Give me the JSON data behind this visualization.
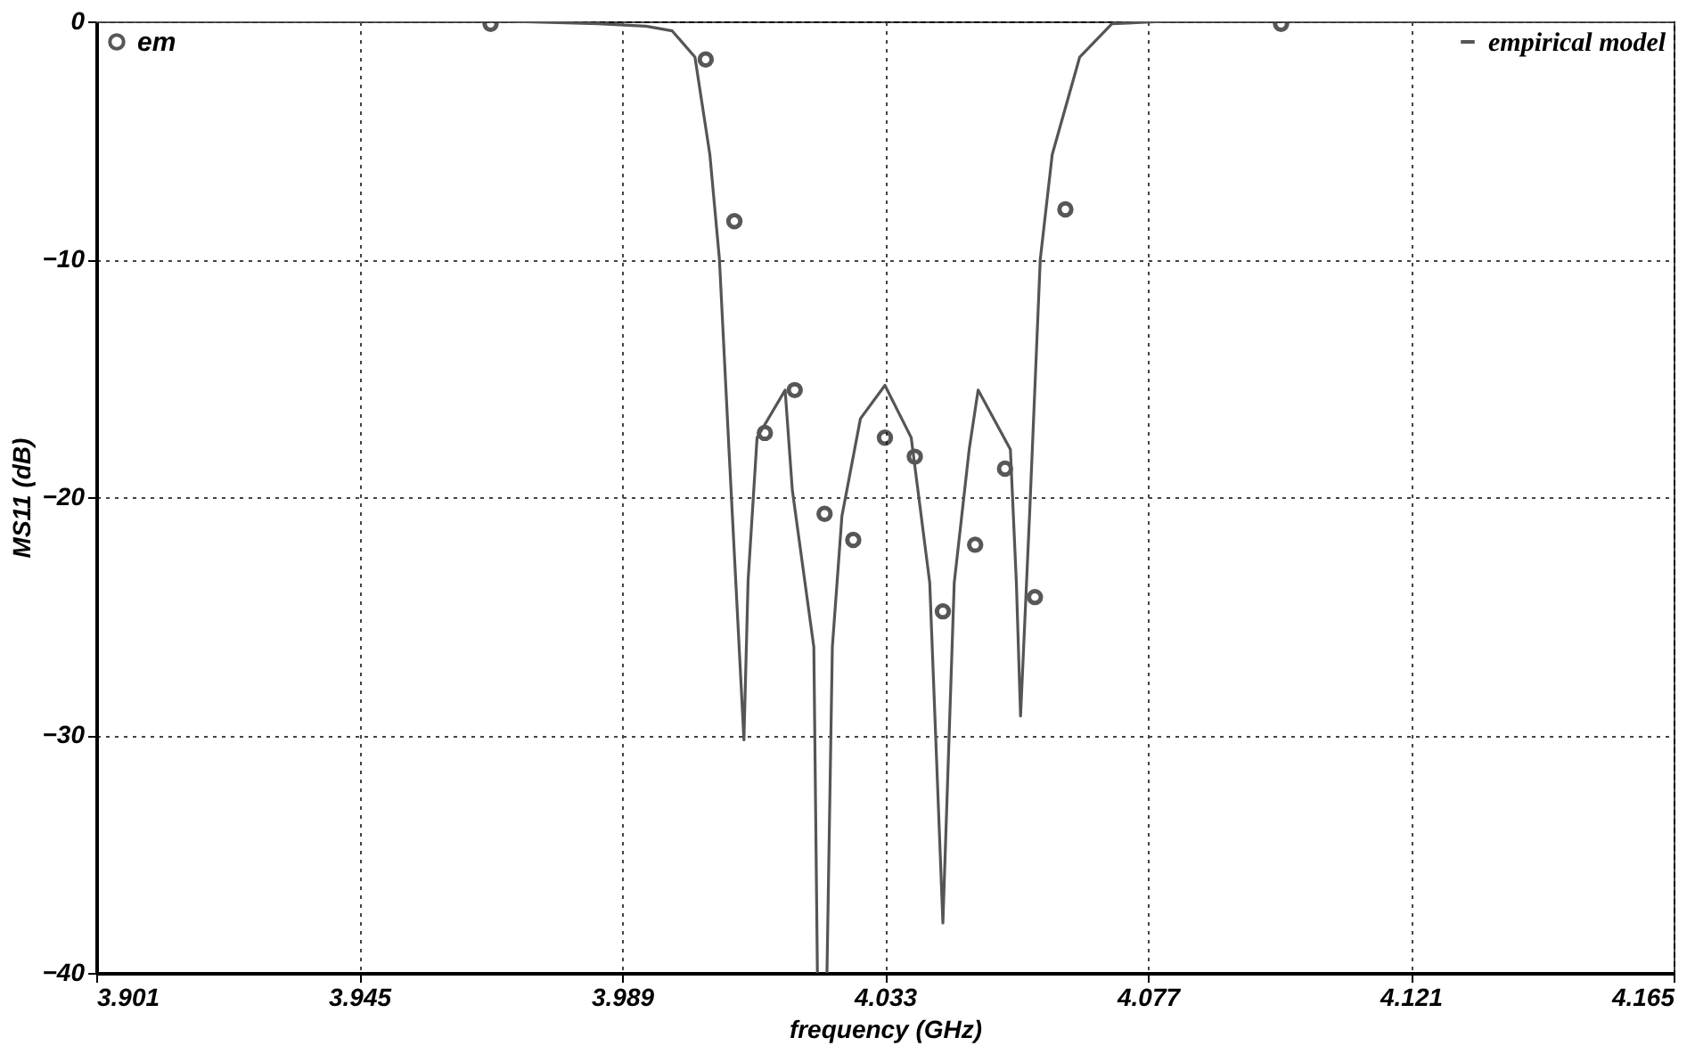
{
  "chart_data": {
    "type": "line",
    "xlabel": "frequency (GHz)",
    "ylabel": "MS11 (dB)",
    "xlim": [
      3.901,
      4.165
    ],
    "ylim": [
      -40,
      0
    ],
    "xticks": [
      3.901,
      3.945,
      3.989,
      4.033,
      4.077,
      4.121,
      4.165
    ],
    "yticks": [
      0,
      -10,
      -20,
      -30,
      -40
    ],
    "grid": true,
    "legend": "top",
    "series": [
      {
        "name": "em",
        "type": "scatter",
        "marker": "circle",
        "color": "#111111",
        "x": [
          3.967,
          4.003,
          4.0078,
          4.0129,
          4.0179,
          4.0229,
          4.0277,
          4.033,
          4.038,
          4.0427,
          4.0481,
          4.0531,
          4.0581,
          4.0632,
          4.0993
        ],
        "values": [
          -0.1,
          -1.6,
          -8.4,
          -17.3,
          -15.5,
          -20.7,
          -21.8,
          -17.5,
          -18.3,
          -24.8,
          -22.0,
          -18.8,
          -24.2,
          -7.9,
          -0.1
        ]
      },
      {
        "name": "empirical model",
        "line_style": "solid",
        "color": "#555555",
        "x": [
          3.901,
          3.97,
          3.985,
          3.993,
          3.9974,
          4.0012,
          4.0037,
          4.0053,
          4.0069,
          4.0094,
          4.0101,
          4.0116,
          4.0163,
          4.0175,
          4.0211,
          4.0217,
          4.022,
          4.0233,
          4.0242,
          4.0258,
          4.0289,
          4.033,
          4.0374,
          4.0405,
          4.0427,
          4.0446,
          4.0471,
          4.0486,
          4.054,
          4.055,
          4.0557,
          4.0572,
          4.059,
          4.061,
          4.0656,
          4.071,
          4.08,
          4.165
        ],
        "values": [
          0,
          0,
          -0.1,
          -0.2,
          -0.4,
          -1.5,
          -5.6,
          -10,
          -18,
          -30.2,
          -23.5,
          -17.5,
          -15.5,
          -19.7,
          -26.3,
          -40,
          null,
          -40,
          -26.3,
          -20.8,
          -16.7,
          -15.3,
          -17.5,
          -23.6,
          -37.9,
          -23.6,
          -18,
          -15.5,
          -18,
          -23.6,
          -29.2,
          -20.8,
          -10,
          -5.6,
          -1.5,
          -0.1,
          0,
          0
        ]
      }
    ]
  }
}
